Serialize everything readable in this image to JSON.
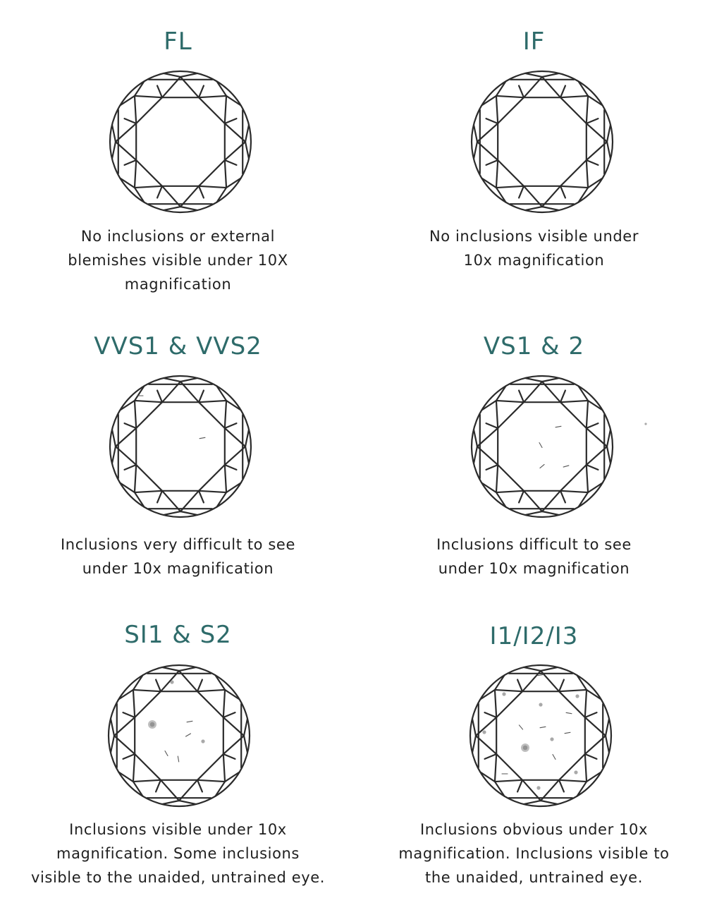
{
  "grades": [
    {
      "id": "fl",
      "label": "FL",
      "lines": [
        "No inclusions or external",
        "blemishes visible under 10X",
        "magnification"
      ],
      "inclusions": []
    },
    {
      "id": "if",
      "label": "IF",
      "lines": [
        "No inclusions visible under",
        "10x magnification"
      ],
      "inclusions": []
    },
    {
      "id": "vvs",
      "label": "VVS1 & VVS2",
      "lines": [
        "Inclusions very difficult to see",
        "under 10x magnification"
      ],
      "inclusions": [
        {
          "kind": "line",
          "x": -57,
          "y": -72,
          "r": 0
        },
        {
          "kind": "line",
          "x": 31,
          "y": -12,
          "r": -10
        }
      ]
    },
    {
      "id": "vs",
      "label": "VS1 & 2",
      "lines": [
        "Inclusions difficult to see",
        "under 10x magnification"
      ],
      "inclusions": [
        {
          "kind": "line",
          "x": 23,
          "y": -28,
          "r": -10
        },
        {
          "kind": "line",
          "x": -2,
          "y": -2,
          "r": 60
        },
        {
          "kind": "line",
          "x": 34,
          "y": 28,
          "r": -15
        },
        {
          "kind": "line",
          "x": 0,
          "y": 28,
          "r": -40
        },
        {
          "kind": "dot",
          "x": 147,
          "y": -32,
          "r": 1.6
        }
      ]
    },
    {
      "id": "si",
      "label": "SI1 & S2",
      "lines": [
        "Inclusions visible under 10x",
        "magnification. Some inclusions",
        "visible to the unaided, untrained eye."
      ],
      "inclusions": [
        {
          "kind": "dot",
          "x": -10,
          "y": -76,
          "r": 2.6
        },
        {
          "kind": "blur",
          "x": -38,
          "y": -16,
          "r": 6
        },
        {
          "kind": "line",
          "x": 15,
          "y": -20,
          "r": -10
        },
        {
          "kind": "line",
          "x": 13,
          "y": -1,
          "r": -30
        },
        {
          "kind": "dot",
          "x": 34,
          "y": 8,
          "r": 2.6
        },
        {
          "kind": "line",
          "x": -18,
          "y": 25,
          "r": 60
        },
        {
          "kind": "line",
          "x": -1,
          "y": 33,
          "r": 80
        }
      ]
    },
    {
      "id": "i",
      "label": "I1/I2/I3",
      "lines": [
        "Inclusions obvious under 10x",
        "magnification. Inclusions visible to",
        "the unaided, untrained eye."
      ],
      "inclusions": [
        {
          "kind": "line",
          "x": 0,
          "y": -86,
          "r": -10
        },
        {
          "kind": "dot",
          "x": -52,
          "y": -59,
          "r": 2.6
        },
        {
          "kind": "dot",
          "x": 52,
          "y": -56,
          "r": 2.6
        },
        {
          "kind": "dot",
          "x": 0,
          "y": -44,
          "r": 2.6
        },
        {
          "kind": "line",
          "x": 40,
          "y": -32,
          "r": 10
        },
        {
          "kind": "line",
          "x": -28,
          "y": -12,
          "r": 50
        },
        {
          "kind": "line",
          "x": 3,
          "y": -12,
          "r": -10
        },
        {
          "kind": "dot",
          "x": -80,
          "y": -5,
          "r": 2.6
        },
        {
          "kind": "line",
          "x": 38,
          "y": -4,
          "r": -10
        },
        {
          "kind": "dot",
          "x": 16,
          "y": 5,
          "r": 2.6
        },
        {
          "kind": "blur",
          "x": -22,
          "y": 17,
          "r": 6
        },
        {
          "kind": "line",
          "x": 19,
          "y": 30,
          "r": 60
        },
        {
          "kind": "line",
          "x": -51,
          "y": 54,
          "r": 0
        },
        {
          "kind": "dot",
          "x": 50,
          "y": 52,
          "r": 2.6
        },
        {
          "kind": "dot",
          "x": -3,
          "y": 74,
          "r": 2.6
        }
      ]
    }
  ]
}
